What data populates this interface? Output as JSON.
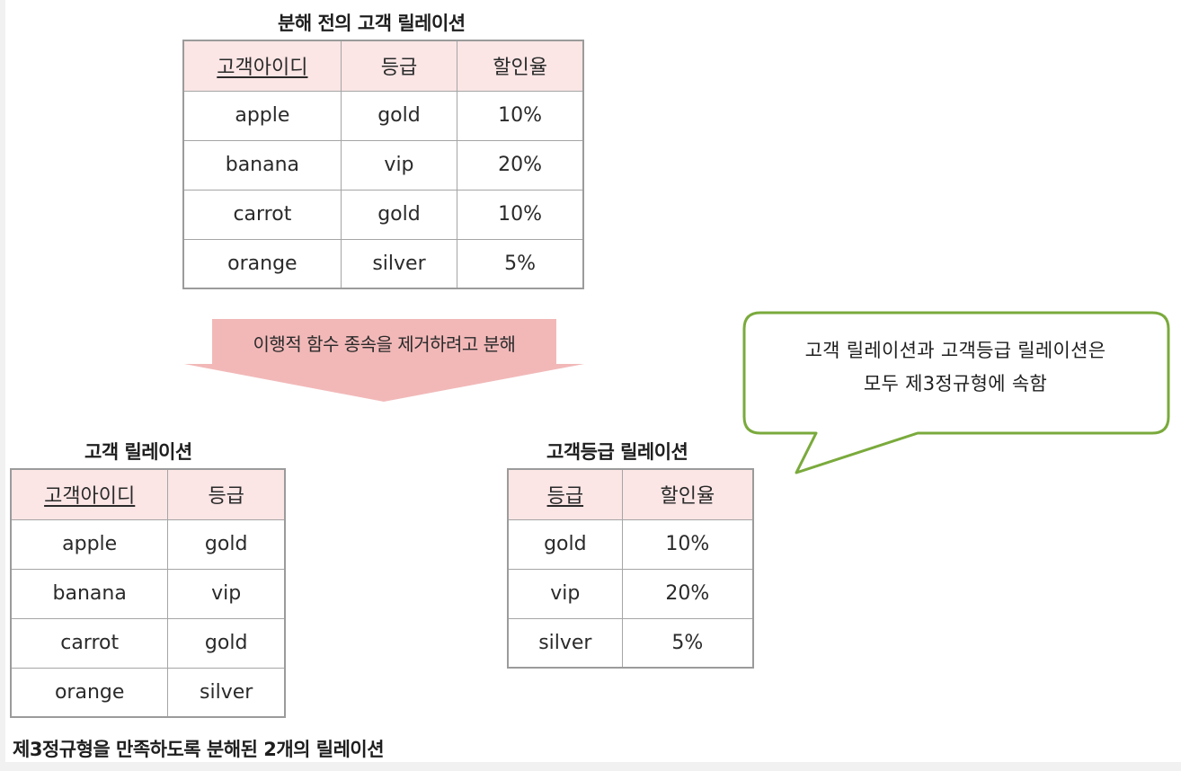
{
  "before": {
    "title": "분해 전의 고객 릴레이션",
    "headers": [
      "고객아이디",
      "등급",
      "할인율"
    ],
    "rows": [
      [
        "apple",
        "gold",
        "10%"
      ],
      [
        "banana",
        "vip",
        "20%"
      ],
      [
        "carrot",
        "gold",
        "10%"
      ],
      [
        "orange",
        "silver",
        "5%"
      ]
    ]
  },
  "arrow_label": "이행적 함수 종속을 제거하려고 분해",
  "customer": {
    "title": "고객 릴레이션",
    "headers": [
      "고객아이디",
      "등급"
    ],
    "rows": [
      [
        "apple",
        "gold"
      ],
      [
        "banana",
        "vip"
      ],
      [
        "carrot",
        "gold"
      ],
      [
        "orange",
        "silver"
      ]
    ]
  },
  "grade": {
    "title": "고객등급 릴레이션",
    "headers": [
      "등급",
      "할인율"
    ],
    "rows": [
      [
        "gold",
        "10%"
      ],
      [
        "vip",
        "20%"
      ],
      [
        "silver",
        "5%"
      ]
    ]
  },
  "callout": {
    "line1": "고객 릴레이션과 고객등급 릴레이션은",
    "line2": "모두 제3정규형에 속함"
  },
  "caption": "제3정규형을 만족하도록 분해된 2개의 릴레이션",
  "colors": {
    "header_fill": "#fbe5e5",
    "arrow_fill": "#f2b8b8",
    "callout_border": "#7aaa3c",
    "table_border": "#9b9b9b"
  }
}
